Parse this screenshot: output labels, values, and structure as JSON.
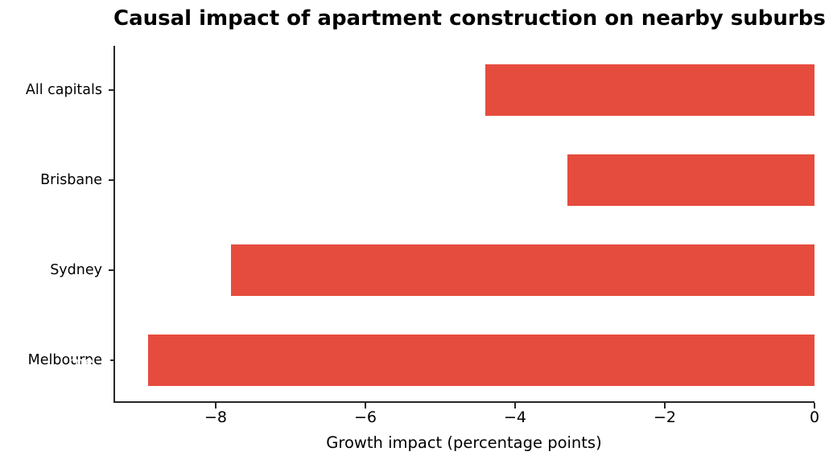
{
  "chart_data": {
    "type": "bar",
    "orientation": "horizontal",
    "title": "Causal impact of apartment construction on nearby suburbs",
    "xlabel": "Growth impact (percentage points)",
    "ylabel": "",
    "categories": [
      "All capitals",
      "Brisbane",
      "Sydney",
      "Melbourne"
    ],
    "values": [
      -4.4,
      -3.3,
      -7.8,
      -8.9
    ],
    "xticks": [
      -8,
      -6,
      -4,
      -2,
      0
    ],
    "xtick_labels": [
      "−8",
      "−6",
      "−4",
      "−2",
      "0"
    ],
    "xlim": [
      -9.35,
      0
    ],
    "grid": false,
    "legend": null,
    "bar_color": "#e64c3e",
    "axis_color": "#262626",
    "text_color": "#000000",
    "background_color": "#ffffff"
  },
  "artifact": {
    "ghost_text": "rne"
  }
}
